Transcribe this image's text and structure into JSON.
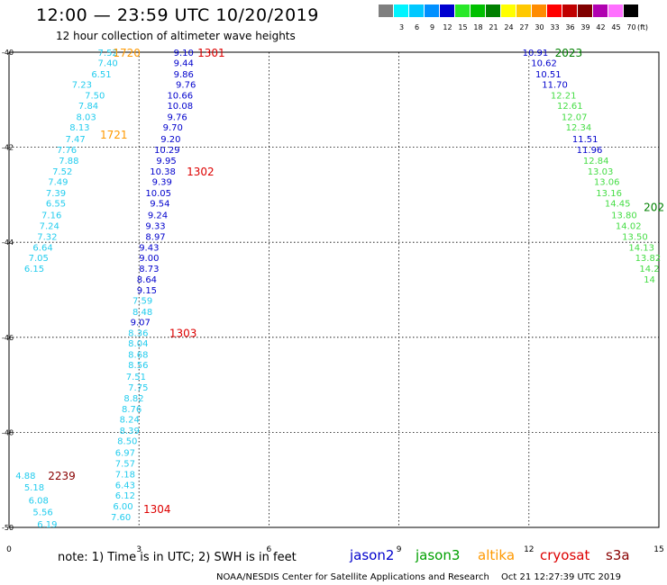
{
  "title": "12:00 — 23:59 UTC 10/20/2019",
  "subtitle": "12 hour collection of altimeter wave heights",
  "scale_legend": {
    "unit": "(ft)",
    "items": [
      {
        "label": "",
        "color": "#7f7f7f"
      },
      {
        "label": "3",
        "color": "#00f4ff"
      },
      {
        "label": "6",
        "color": "#00c8ff"
      },
      {
        "label": "9",
        "color": "#0090ff"
      },
      {
        "label": "12",
        "color": "#0000d0"
      },
      {
        "label": "15",
        "color": "#28e828"
      },
      {
        "label": "18",
        "color": "#00c000"
      },
      {
        "label": "21",
        "color": "#008000"
      },
      {
        "label": "24",
        "color": "#ffff00"
      },
      {
        "label": "27",
        "color": "#ffc800"
      },
      {
        "label": "30",
        "color": "#ff8c00"
      },
      {
        "label": "33",
        "color": "#ff0000"
      },
      {
        "label": "36",
        "color": "#c00000"
      },
      {
        "label": "39",
        "color": "#800000"
      },
      {
        "label": "42",
        "color": "#b000b0"
      },
      {
        "label": "45",
        "color": "#ff70ff"
      },
      {
        "label": "70",
        "color": "#000000"
      }
    ]
  },
  "note": "note:  1) Time is in UTC;  2) SWH is in feet",
  "satellites": [
    {
      "name": "jason2",
      "color": "#0000cc"
    },
    {
      "name": "jason3",
      "color": "#00a000"
    },
    {
      "name": "altika",
      "color": "#ff9900"
    },
    {
      "name": "cryosat",
      "color": "#dd0000"
    },
    {
      "name": "s3a",
      "color": "#880000"
    }
  ],
  "footer_org": "NOAA/NESDIS Center for Satellite Applications and Research",
  "footer_time": "Oct 21 12:27:39 UTC 2019",
  "chart_data": {
    "type": "scatter",
    "xlim": [
      0,
      15
    ],
    "ylim": [
      -50,
      -40
    ],
    "xticks": [
      "0",
      "3",
      "6",
      "9",
      "12",
      "15"
    ],
    "yticks": [
      "-40",
      "-42",
      "-44",
      "-46",
      "-48",
      "-50"
    ],
    "grid": true,
    "colors": {
      "c_lightcyan": "#22ccee",
      "c_blue": "#0000cc",
      "c_green": "#44dd44",
      "c_orange": "#ff9900",
      "c_red": "#dd0000",
      "c_darkgreen": "#008000",
      "c_darkred": "#880000"
    },
    "labels": [
      {
        "x": 2.05,
        "y": -40.0,
        "text": "7.52",
        "color": "c_lightcyan"
      },
      {
        "x": 2.05,
        "y": -40.22,
        "text": "7.40",
        "color": "c_lightcyan"
      },
      {
        "x": 1.9,
        "y": -40.45,
        "text": "6.51",
        "color": "c_lightcyan"
      },
      {
        "x": 1.45,
        "y": -40.67,
        "text": "7.23",
        "color": "c_lightcyan"
      },
      {
        "x": 1.75,
        "y": -40.9,
        "text": "7.50",
        "color": "c_lightcyan"
      },
      {
        "x": 1.6,
        "y": -41.12,
        "text": "7.84",
        "color": "c_lightcyan"
      },
      {
        "x": 1.55,
        "y": -41.35,
        "text": "8.03",
        "color": "c_lightcyan"
      },
      {
        "x": 1.4,
        "y": -41.57,
        "text": "8.13",
        "color": "c_lightcyan"
      },
      {
        "x": 1.3,
        "y": -41.82,
        "text": "7.47",
        "color": "c_lightcyan"
      },
      {
        "x": 1.1,
        "y": -42.05,
        "text": "7.76",
        "color": "c_lightcyan"
      },
      {
        "x": 1.15,
        "y": -42.27,
        "text": "7.88",
        "color": "c_lightcyan"
      },
      {
        "x": 1.0,
        "y": -42.5,
        "text": "7.52",
        "color": "c_lightcyan"
      },
      {
        "x": 0.9,
        "y": -42.72,
        "text": "7.49",
        "color": "c_lightcyan"
      },
      {
        "x": 0.85,
        "y": -42.95,
        "text": "7.39",
        "color": "c_lightcyan"
      },
      {
        "x": 0.85,
        "y": -43.17,
        "text": "6.55",
        "color": "c_lightcyan"
      },
      {
        "x": 0.75,
        "y": -43.42,
        "text": "7.16",
        "color": "c_lightcyan"
      },
      {
        "x": 0.7,
        "y": -43.65,
        "text": "7.24",
        "color": "c_lightcyan"
      },
      {
        "x": 0.65,
        "y": -43.87,
        "text": "7.32",
        "color": "c_lightcyan"
      },
      {
        "x": 0.55,
        "y": -44.1,
        "text": "6.64",
        "color": "c_lightcyan"
      },
      {
        "x": 0.45,
        "y": -44.32,
        "text": "7.05",
        "color": "c_lightcyan"
      },
      {
        "x": 0.35,
        "y": -44.55,
        "text": "6.15",
        "color": "c_lightcyan"
      },
      {
        "x": 3.8,
        "y": -40.0,
        "text": "9.10",
        "color": "c_blue"
      },
      {
        "x": 3.8,
        "y": -40.22,
        "text": "9.44",
        "color": "c_blue"
      },
      {
        "x": 3.8,
        "y": -40.45,
        "text": "9.86",
        "color": "c_blue"
      },
      {
        "x": 3.85,
        "y": -40.67,
        "text": "9.76",
        "color": "c_blue"
      },
      {
        "x": 3.65,
        "y": -40.9,
        "text": "10.66",
        "color": "c_blue"
      },
      {
        "x": 3.65,
        "y": -41.12,
        "text": "10.08",
        "color": "c_blue"
      },
      {
        "x": 3.65,
        "y": -41.35,
        "text": "9.76",
        "color": "c_blue"
      },
      {
        "x": 3.55,
        "y": -41.57,
        "text": "9.70",
        "color": "c_blue"
      },
      {
        "x": 3.5,
        "y": -41.82,
        "text": "9.20",
        "color": "c_blue"
      },
      {
        "x": 3.35,
        "y": -42.05,
        "text": "10.29",
        "color": "c_blue"
      },
      {
        "x": 3.4,
        "y": -42.27,
        "text": "9.95",
        "color": "c_blue"
      },
      {
        "x": 3.25,
        "y": -42.5,
        "text": "10.38",
        "color": "c_blue"
      },
      {
        "x": 3.3,
        "y": -42.72,
        "text": "9.39",
        "color": "c_blue"
      },
      {
        "x": 3.15,
        "y": -42.95,
        "text": "10.05",
        "color": "c_blue"
      },
      {
        "x": 3.25,
        "y": -43.17,
        "text": "9.54",
        "color": "c_blue"
      },
      {
        "x": 3.2,
        "y": -43.42,
        "text": "9.24",
        "color": "c_blue"
      },
      {
        "x": 3.15,
        "y": -43.65,
        "text": "9.33",
        "color": "c_blue"
      },
      {
        "x": 3.15,
        "y": -43.87,
        "text": "8.97",
        "color": "c_blue"
      },
      {
        "x": 3.0,
        "y": -44.1,
        "text": "9.43",
        "color": "c_blue"
      },
      {
        "x": 3.0,
        "y": -44.32,
        "text": "9.00",
        "color": "c_blue"
      },
      {
        "x": 3.0,
        "y": -44.55,
        "text": "8.73",
        "color": "c_blue"
      },
      {
        "x": 2.95,
        "y": -44.77,
        "text": "8.64",
        "color": "c_blue"
      },
      {
        "x": 2.95,
        "y": -45.0,
        "text": "9.15",
        "color": "c_blue"
      },
      {
        "x": 2.85,
        "y": -45.22,
        "text": "7.59",
        "color": "c_lightcyan"
      },
      {
        "x": 2.85,
        "y": -45.45,
        "text": "8.48",
        "color": "c_lightcyan"
      },
      {
        "x": 2.8,
        "y": -45.67,
        "text": "9.07",
        "color": "c_blue"
      },
      {
        "x": 2.75,
        "y": -45.9,
        "text": "8.36",
        "color": "c_lightcyan"
      },
      {
        "x": 2.75,
        "y": -46.12,
        "text": "8.04",
        "color": "c_lightcyan"
      },
      {
        "x": 2.75,
        "y": -46.35,
        "text": "8.68",
        "color": "c_lightcyan"
      },
      {
        "x": 2.75,
        "y": -46.57,
        "text": "8.56",
        "color": "c_lightcyan"
      },
      {
        "x": 2.7,
        "y": -46.82,
        "text": "7.51",
        "color": "c_lightcyan"
      },
      {
        "x": 2.75,
        "y": -47.05,
        "text": "7.75",
        "color": "c_lightcyan"
      },
      {
        "x": 2.65,
        "y": -47.27,
        "text": "8.82",
        "color": "c_lightcyan"
      },
      {
        "x": 2.6,
        "y": -47.5,
        "text": "8.76",
        "color": "c_lightcyan"
      },
      {
        "x": 2.55,
        "y": -47.72,
        "text": "8.24",
        "color": "c_lightcyan"
      },
      {
        "x": 2.55,
        "y": -47.95,
        "text": "8.39",
        "color": "c_lightcyan"
      },
      {
        "x": 2.5,
        "y": -48.17,
        "text": "8.50",
        "color": "c_lightcyan"
      },
      {
        "x": 2.45,
        "y": -48.42,
        "text": "6.97",
        "color": "c_lightcyan"
      },
      {
        "x": 2.45,
        "y": -48.65,
        "text": "7.57",
        "color": "c_lightcyan"
      },
      {
        "x": 2.45,
        "y": -48.87,
        "text": "7.18",
        "color": "c_lightcyan"
      },
      {
        "x": 2.45,
        "y": -49.1,
        "text": "6.43",
        "color": "c_lightcyan"
      },
      {
        "x": 2.45,
        "y": -49.32,
        "text": "6.12",
        "color": "c_lightcyan"
      },
      {
        "x": 2.4,
        "y": -49.55,
        "text": "6.00",
        "color": "c_lightcyan"
      },
      {
        "x": 2.35,
        "y": -49.77,
        "text": "7.60",
        "color": "c_lightcyan"
      },
      {
        "x": 0.15,
        "y": -48.9,
        "text": "4.88",
        "color": "c_lightcyan"
      },
      {
        "x": 0.35,
        "y": -49.15,
        "text": "5.18",
        "color": "c_lightcyan"
      },
      {
        "x": 0.45,
        "y": -49.42,
        "text": "6.08",
        "color": "c_lightcyan"
      },
      {
        "x": 0.55,
        "y": -49.67,
        "text": "5.56",
        "color": "c_lightcyan"
      },
      {
        "x": 0.65,
        "y": -49.92,
        "text": "6.19",
        "color": "c_lightcyan"
      },
      {
        "x": 11.85,
        "y": -40.0,
        "text": "10.91",
        "color": "c_blue"
      },
      {
        "x": 12.05,
        "y": -40.22,
        "text": "10.62",
        "color": "c_blue"
      },
      {
        "x": 12.15,
        "y": -40.45,
        "text": "10.51",
        "color": "c_blue"
      },
      {
        "x": 12.3,
        "y": -40.67,
        "text": "11.70",
        "color": "c_blue"
      },
      {
        "x": 12.5,
        "y": -40.9,
        "text": "12.21",
        "color": "c_green"
      },
      {
        "x": 12.65,
        "y": -41.12,
        "text": "12.61",
        "color": "c_green"
      },
      {
        "x": 12.75,
        "y": -41.35,
        "text": "12.07",
        "color": "c_green"
      },
      {
        "x": 12.85,
        "y": -41.57,
        "text": "12.34",
        "color": "c_green"
      },
      {
        "x": 13.0,
        "y": -41.82,
        "text": "11.51",
        "color": "c_blue"
      },
      {
        "x": 13.1,
        "y": -42.05,
        "text": "11.96",
        "color": "c_blue"
      },
      {
        "x": 13.25,
        "y": -42.27,
        "text": "12.84",
        "color": "c_green"
      },
      {
        "x": 13.35,
        "y": -42.5,
        "text": "13.03",
        "color": "c_green"
      },
      {
        "x": 13.5,
        "y": -42.72,
        "text": "13.06",
        "color": "c_green"
      },
      {
        "x": 13.55,
        "y": -42.95,
        "text": "13.16",
        "color": "c_green"
      },
      {
        "x": 13.75,
        "y": -43.17,
        "text": "14.45",
        "color": "c_green"
      },
      {
        "x": 13.9,
        "y": -43.42,
        "text": "13.80",
        "color": "c_green"
      },
      {
        "x": 14.0,
        "y": -43.65,
        "text": "14.02",
        "color": "c_green"
      },
      {
        "x": 14.15,
        "y": -43.87,
        "text": "13.50",
        "color": "c_green"
      },
      {
        "x": 14.3,
        "y": -44.1,
        "text": "14.13",
        "color": "c_green"
      },
      {
        "x": 14.45,
        "y": -44.32,
        "text": "13.82",
        "color": "c_green"
      },
      {
        "x": 14.55,
        "y": -44.55,
        "text": "14.2",
        "color": "c_green"
      },
      {
        "x": 14.65,
        "y": -44.77,
        "text": "14",
        "color": "c_green"
      }
    ],
    "pass_times": [
      {
        "x": 2.4,
        "y": -40.0,
        "text": "1720",
        "color": "c_orange"
      },
      {
        "x": 4.35,
        "y": -40.0,
        "text": "1301",
        "color": "c_red"
      },
      {
        "x": 2.1,
        "y": -41.72,
        "text": "1721",
        "color": "c_orange"
      },
      {
        "x": 4.1,
        "y": -42.5,
        "text": "1302",
        "color": "c_red"
      },
      {
        "x": 3.7,
        "y": -45.9,
        "text": "1303",
        "color": "c_red"
      },
      {
        "x": 3.1,
        "y": -49.6,
        "text": "1304",
        "color": "c_red"
      },
      {
        "x": 0.9,
        "y": -48.9,
        "text": "2239",
        "color": "c_darkred"
      },
      {
        "x": 12.6,
        "y": -40.0,
        "text": "2023",
        "color": "c_darkgreen"
      },
      {
        "x": 14.65,
        "y": -43.25,
        "text": "202",
        "color": "c_darkgreen"
      }
    ]
  }
}
